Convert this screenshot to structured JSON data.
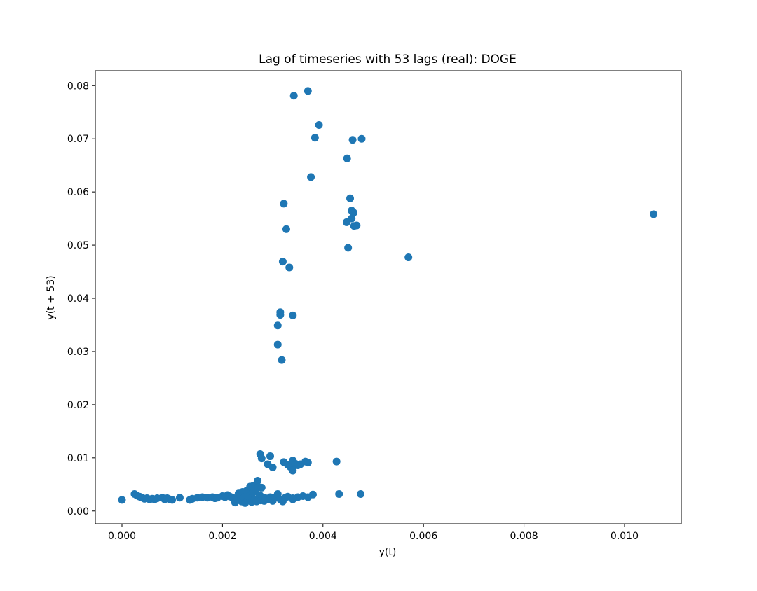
{
  "chart_data": {
    "type": "scatter",
    "title": "Lag of timeseries with 53 lags (real):  DOGE",
    "xlabel": "y(t)",
    "ylabel": "y(t + 53)",
    "xlim": [
      -0.00053,
      0.01113
    ],
    "ylim": [
      -0.0024,
      0.0828
    ],
    "xticks": [
      0.0,
      0.002,
      0.004,
      0.006,
      0.008,
      0.01
    ],
    "xtick_labels": [
      "0.000",
      "0.002",
      "0.004",
      "0.006",
      "0.008",
      "0.010"
    ],
    "yticks": [
      0.0,
      0.01,
      0.02,
      0.03,
      0.04,
      0.05,
      0.06,
      0.07,
      0.08
    ],
    "ytick_labels": [
      "0.00",
      "0.01",
      "0.02",
      "0.03",
      "0.04",
      "0.05",
      "0.06",
      "0.07",
      "0.08"
    ],
    "grid": false,
    "marker_color": "#1f77b4",
    "points": [
      [
        0.0,
        0.0021
      ],
      [
        0.00025,
        0.0032
      ],
      [
        0.0003,
        0.0029
      ],
      [
        0.00035,
        0.0027
      ],
      [
        0.0004,
        0.0025
      ],
      [
        0.00045,
        0.0023
      ],
      [
        0.0005,
        0.0024
      ],
      [
        0.00055,
        0.0022
      ],
      [
        0.0006,
        0.0023
      ],
      [
        0.00065,
        0.0022
      ],
      [
        0.0007,
        0.0024
      ],
      [
        0.0008,
        0.0025
      ],
      [
        0.00085,
        0.0022
      ],
      [
        0.0009,
        0.0024
      ],
      [
        0.00095,
        0.0022
      ],
      [
        0.001,
        0.0021
      ],
      [
        0.00115,
        0.0025
      ],
      [
        0.00135,
        0.0021
      ],
      [
        0.0014,
        0.0023
      ],
      [
        0.0015,
        0.0025
      ],
      [
        0.0016,
        0.0026
      ],
      [
        0.0017,
        0.0025
      ],
      [
        0.0018,
        0.0026
      ],
      [
        0.00185,
        0.0024
      ],
      [
        0.0019,
        0.0025
      ],
      [
        0.002,
        0.0028
      ],
      [
        0.00205,
        0.0026
      ],
      [
        0.0021,
        0.003
      ],
      [
        0.00215,
        0.0027
      ],
      [
        0.0022,
        0.0025
      ],
      [
        0.00225,
        0.0016
      ],
      [
        0.0023,
        0.0022
      ],
      [
        0.00232,
        0.0033
      ],
      [
        0.00235,
        0.003
      ],
      [
        0.00238,
        0.0018
      ],
      [
        0.0024,
        0.0036
      ],
      [
        0.00243,
        0.0025
      ],
      [
        0.00245,
        0.0015
      ],
      [
        0.00248,
        0.0038
      ],
      [
        0.0025,
        0.002
      ],
      [
        0.00252,
        0.0027
      ],
      [
        0.00255,
        0.0046
      ],
      [
        0.00258,
        0.0017
      ],
      [
        0.0026,
        0.0034
      ],
      [
        0.00262,
        0.0048
      ],
      [
        0.00264,
        0.0022
      ],
      [
        0.00266,
        0.0039
      ],
      [
        0.00268,
        0.0018
      ],
      [
        0.0027,
        0.0057
      ],
      [
        0.00272,
        0.0045
      ],
      [
        0.00274,
        0.003
      ],
      [
        0.00276,
        0.002
      ],
      [
        0.00278,
        0.0044
      ],
      [
        0.0028,
        0.0026
      ],
      [
        0.00283,
        0.0019
      ],
      [
        0.00286,
        0.0024
      ],
      [
        0.0029,
        0.0022
      ],
      [
        0.00295,
        0.0026
      ],
      [
        0.003,
        0.0019
      ],
      [
        0.00305,
        0.0025
      ],
      [
        0.0031,
        0.0032
      ],
      [
        0.00315,
        0.0022
      ],
      [
        0.0032,
        0.0018
      ],
      [
        0.00325,
        0.0025
      ],
      [
        0.0033,
        0.0027
      ],
      [
        0.0034,
        0.0022
      ],
      [
        0.0035,
        0.0026
      ],
      [
        0.0036,
        0.0028
      ],
      [
        0.0037,
        0.0026
      ],
      [
        0.0038,
        0.0031
      ],
      [
        0.0034,
        0.0024
      ],
      [
        0.00275,
        0.0107
      ],
      [
        0.00278,
        0.0099
      ],
      [
        0.00295,
        0.0103
      ],
      [
        0.0029,
        0.0088
      ],
      [
        0.003,
        0.0082
      ],
      [
        0.00322,
        0.0092
      ],
      [
        0.0033,
        0.0087
      ],
      [
        0.00335,
        0.0083
      ],
      [
        0.0034,
        0.0095
      ],
      [
        0.00345,
        0.0089
      ],
      [
        0.0034,
        0.0076
      ],
      [
        0.0035,
        0.0086
      ],
      [
        0.00355,
        0.0088
      ],
      [
        0.00365,
        0.0093
      ],
      [
        0.0037,
        0.0091
      ],
      [
        0.00427,
        0.0093
      ],
      [
        0.00432,
        0.0032
      ],
      [
        0.00475,
        0.0032
      ],
      [
        0.00318,
        0.0284
      ],
      [
        0.0031,
        0.0313
      ],
      [
        0.0031,
        0.0349
      ],
      [
        0.00315,
        0.0369
      ],
      [
        0.00315,
        0.0374
      ],
      [
        0.0034,
        0.0368
      ],
      [
        0.0032,
        0.0469
      ],
      [
        0.00333,
        0.0458
      ],
      [
        0.00327,
        0.053
      ],
      [
        0.00322,
        0.0578
      ],
      [
        0.00376,
        0.0628
      ],
      [
        0.00384,
        0.0702
      ],
      [
        0.00392,
        0.0726
      ],
      [
        0.00342,
        0.0781
      ],
      [
        0.0037,
        0.079
      ],
      [
        0.00448,
        0.0663
      ],
      [
        0.00459,
        0.0698
      ],
      [
        0.00477,
        0.07
      ],
      [
        0.00454,
        0.0588
      ],
      [
        0.00457,
        0.0565
      ],
      [
        0.00461,
        0.0561
      ],
      [
        0.00457,
        0.055
      ],
      [
        0.00447,
        0.0543
      ],
      [
        0.00462,
        0.0536
      ],
      [
        0.00467,
        0.0537
      ],
      [
        0.0045,
        0.0495
      ],
      [
        0.0057,
        0.0477
      ],
      [
        0.01058,
        0.0558
      ]
    ]
  }
}
